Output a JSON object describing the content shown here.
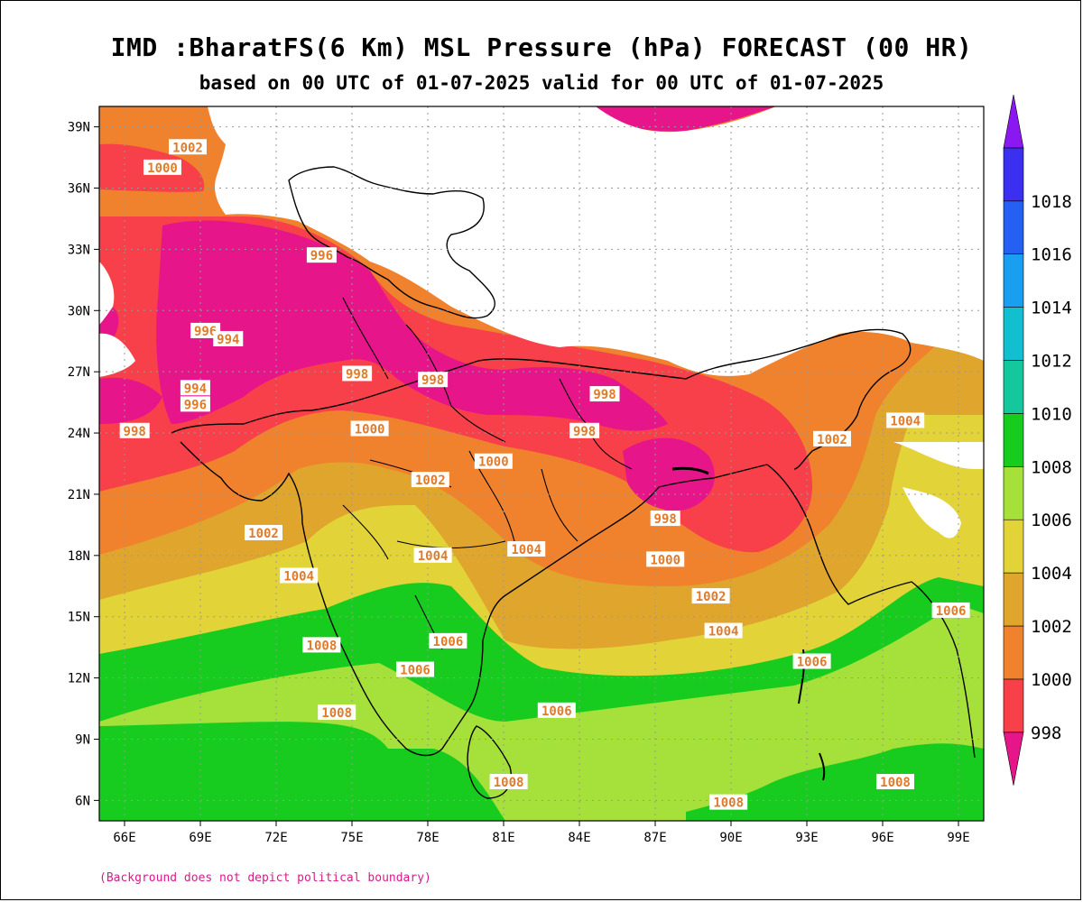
{
  "chart_data": {
    "type": "heatmap",
    "title": "IMD :BharatFS(6 Km) MSL Pressure (hPa) FORECAST (00 HR)",
    "subtitle": "based on 00 UTC of 01-07-2025 valid for 00 UTC of 01-07-2025",
    "x_ticks": [
      "66E",
      "69E",
      "72E",
      "75E",
      "78E",
      "81E",
      "84E",
      "87E",
      "90E",
      "93E",
      "96E",
      "99E"
    ],
    "y_ticks": [
      "39N",
      "36N",
      "33N",
      "30N",
      "27N",
      "24N",
      "21N",
      "18N",
      "15N",
      "12N",
      "9N",
      "6N"
    ],
    "x_range": [
      65,
      100
    ],
    "y_range": [
      5,
      40
    ],
    "colorbar": [
      {
        "label": "",
        "color": "#e6168a"
      },
      {
        "label": "998",
        "color": "#f7404a"
      },
      {
        "label": "1000",
        "color": "#f0822e"
      },
      {
        "label": "1002",
        "color": "#e0a52c"
      },
      {
        "label": "1004",
        "color": "#e2d438"
      },
      {
        "label": "1006",
        "color": "#a6e03a"
      },
      {
        "label": "1008",
        "color": "#18cc1f"
      },
      {
        "label": "1010",
        "color": "#14c79d"
      },
      {
        "label": "1012",
        "color": "#12bfcf"
      },
      {
        "label": "1014",
        "color": "#1a9ef0"
      },
      {
        "label": "1016",
        "color": "#2660f2"
      },
      {
        "label": "1018",
        "color": "#3b2ff0"
      },
      {
        "label": "",
        "color": "#8b18f0"
      }
    ],
    "contour_labels": [
      {
        "text": "1002",
        "lon": 68.5,
        "lat": 38.0
      },
      {
        "text": "1000",
        "lon": 67.5,
        "lat": 37.0
      },
      {
        "text": "996",
        "lon": 73.8,
        "lat": 32.7
      },
      {
        "text": "996",
        "lon": 69.2,
        "lat": 29.0
      },
      {
        "text": "994",
        "lon": 70.1,
        "lat": 28.6
      },
      {
        "text": "994",
        "lon": 68.8,
        "lat": 26.2
      },
      {
        "text": "996",
        "lon": 68.8,
        "lat": 25.4
      },
      {
        "text": "998",
        "lon": 66.4,
        "lat": 24.1
      },
      {
        "text": "998",
        "lon": 75.2,
        "lat": 26.9
      },
      {
        "text": "998",
        "lon": 78.2,
        "lat": 26.6
      },
      {
        "text": "998",
        "lon": 85.0,
        "lat": 25.9
      },
      {
        "text": "998",
        "lon": 84.2,
        "lat": 24.1
      },
      {
        "text": "998",
        "lon": 87.4,
        "lat": 19.8
      },
      {
        "text": "1000",
        "lon": 75.7,
        "lat": 24.2
      },
      {
        "text": "1000",
        "lon": 80.6,
        "lat": 22.6
      },
      {
        "text": "1000",
        "lon": 87.4,
        "lat": 17.8
      },
      {
        "text": "1002",
        "lon": 78.1,
        "lat": 21.7
      },
      {
        "text": "1002",
        "lon": 71.5,
        "lat": 19.1
      },
      {
        "text": "1002",
        "lon": 89.2,
        "lat": 16.0
      },
      {
        "text": "1002",
        "lon": 94.0,
        "lat": 23.7
      },
      {
        "text": "1004",
        "lon": 72.9,
        "lat": 17.0
      },
      {
        "text": "1004",
        "lon": 78.2,
        "lat": 18.0
      },
      {
        "text": "1004",
        "lon": 81.9,
        "lat": 18.3
      },
      {
        "text": "1004",
        "lon": 89.7,
        "lat": 14.3
      },
      {
        "text": "1004",
        "lon": 96.9,
        "lat": 24.6
      },
      {
        "text": "1006",
        "lon": 78.8,
        "lat": 13.8
      },
      {
        "text": "1006",
        "lon": 77.5,
        "lat": 12.4
      },
      {
        "text": "1006",
        "lon": 83.1,
        "lat": 10.4
      },
      {
        "text": "1006",
        "lon": 93.2,
        "lat": 12.8
      },
      {
        "text": "1006",
        "lon": 98.7,
        "lat": 15.3
      },
      {
        "text": "1008",
        "lon": 73.8,
        "lat": 13.6
      },
      {
        "text": "1008",
        "lon": 74.4,
        "lat": 10.3
      },
      {
        "text": "1008",
        "lon": 81.2,
        "lat": 6.9
      },
      {
        "text": "1008",
        "lon": 89.9,
        "lat": 5.9
      },
      {
        "text": "1008",
        "lon": 96.5,
        "lat": 6.9
      }
    ]
  },
  "footnote": "(Background does not depict political boundary)"
}
